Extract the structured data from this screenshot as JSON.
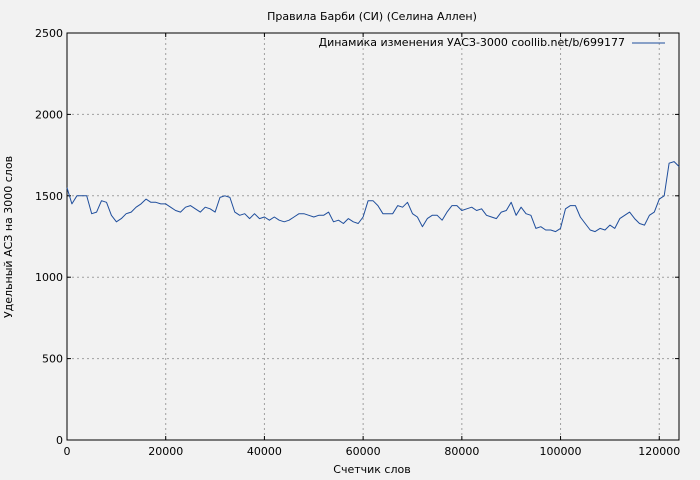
{
  "chart_data": {
    "type": "line",
    "title": "Правила Барби (СИ) (Селина Аллен)",
    "xlabel": "Счетчик слов",
    "ylabel": "Удельный АСЗ на 3000 слов",
    "xlim": [
      0,
      124000
    ],
    "ylim": [
      0,
      2500
    ],
    "x_ticks": [
      0,
      20000,
      40000,
      60000,
      80000,
      100000,
      120000
    ],
    "x_tick_labels": [
      "0",
      "20000",
      "40000",
      "60000",
      "80000",
      "100000",
      "120000"
    ],
    "y_ticks": [
      0,
      500,
      1000,
      1500,
      2000,
      2500
    ],
    "y_tick_labels": [
      "0",
      "500",
      "1000",
      "1500",
      "2000",
      "2500"
    ],
    "grid": true,
    "legend_position": "top-right",
    "series_color": "#1f4e9c",
    "series": [
      {
        "name": "Динамика изменения УАСЗ-3000 coollib.net/b/699177",
        "x": [
          0,
          1000,
          2000,
          3000,
          4000,
          5000,
          6000,
          7000,
          8000,
          9000,
          10000,
          11000,
          12000,
          13000,
          14000,
          15000,
          16000,
          17000,
          18000,
          19000,
          20000,
          21000,
          22000,
          23000,
          24000,
          25000,
          26000,
          27000,
          28000,
          29000,
          30000,
          31000,
          32000,
          33000,
          34000,
          35000,
          36000,
          37000,
          38000,
          39000,
          40000,
          41000,
          42000,
          43000,
          44000,
          45000,
          46000,
          47000,
          48000,
          49000,
          50000,
          51000,
          52000,
          53000,
          54000,
          55000,
          56000,
          57000,
          58000,
          59000,
          60000,
          61000,
          62000,
          63000,
          64000,
          65000,
          66000,
          67000,
          68000,
          69000,
          70000,
          71000,
          72000,
          73000,
          74000,
          75000,
          76000,
          77000,
          78000,
          79000,
          80000,
          81000,
          82000,
          83000,
          84000,
          85000,
          86000,
          87000,
          88000,
          89000,
          90000,
          91000,
          92000,
          93000,
          94000,
          95000,
          96000,
          97000,
          98000,
          99000,
          100000,
          101000,
          102000,
          103000,
          104000,
          105000,
          106000,
          107000,
          108000,
          109000,
          110000,
          111000,
          112000,
          113000,
          114000,
          115000,
          116000,
          117000,
          118000,
          119000,
          120000,
          121000,
          122000,
          123000,
          124000
        ],
        "y": [
          1550,
          1450,
          1500,
          1500,
          1500,
          1390,
          1400,
          1470,
          1460,
          1380,
          1340,
          1360,
          1390,
          1400,
          1430,
          1450,
          1480,
          1460,
          1460,
          1450,
          1450,
          1430,
          1410,
          1400,
          1430,
          1440,
          1420,
          1400,
          1430,
          1420,
          1400,
          1490,
          1500,
          1490,
          1400,
          1380,
          1390,
          1360,
          1390,
          1360,
          1370,
          1350,
          1370,
          1350,
          1340,
          1350,
          1370,
          1390,
          1390,
          1380,
          1370,
          1380,
          1380,
          1400,
          1340,
          1350,
          1330,
          1360,
          1340,
          1330,
          1370,
          1470,
          1470,
          1440,
          1390,
          1390,
          1390,
          1440,
          1430,
          1460,
          1390,
          1370,
          1310,
          1360,
          1380,
          1380,
          1350,
          1400,
          1440,
          1440,
          1410,
          1420,
          1430,
          1410,
          1420,
          1380,
          1370,
          1360,
          1400,
          1410,
          1460,
          1380,
          1430,
          1390,
          1380,
          1300,
          1310,
          1290,
          1290,
          1280,
          1300,
          1420,
          1440,
          1440,
          1370,
          1330,
          1290,
          1280,
          1300,
          1290,
          1320,
          1300,
          1360,
          1380,
          1400,
          1360,
          1330,
          1320,
          1380,
          1400,
          1480,
          1500,
          1700,
          1710,
          1680
        ]
      }
    ]
  }
}
